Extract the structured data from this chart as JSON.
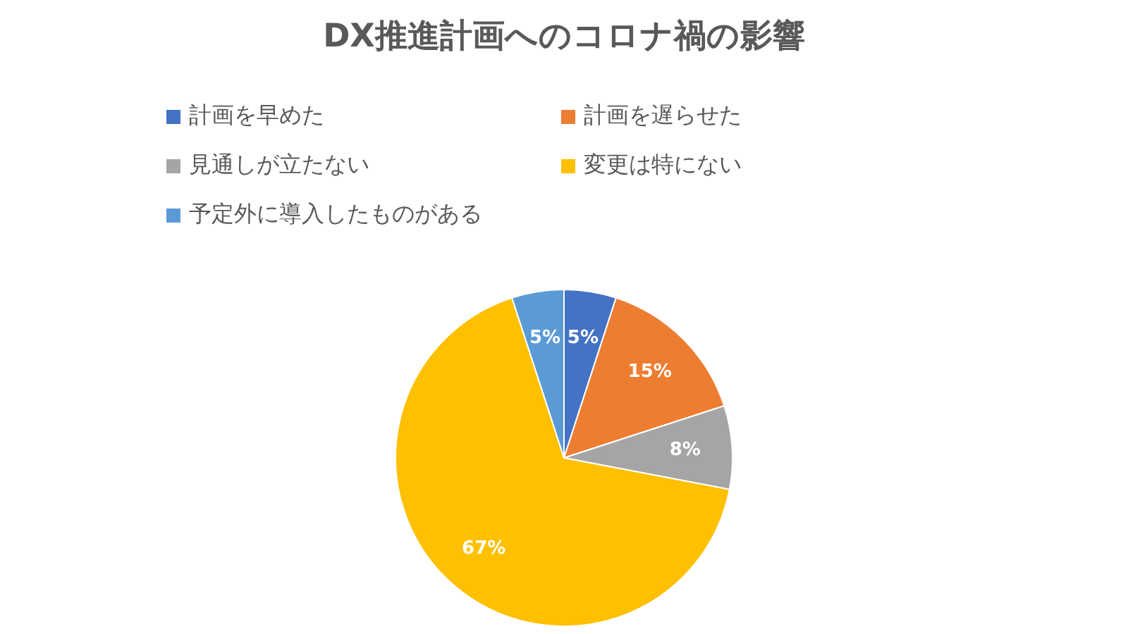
{
  "chart_data": {
    "type": "pie",
    "title": "DX推進計画へのコロナ禍の影響",
    "categories": [
      "計画を早めた",
      "計画を遅らせた",
      "見通しが立たない",
      "変更は特にない",
      "予定外に導入したものがある"
    ],
    "values": [
      5,
      15,
      8,
      67,
      5
    ],
    "colors": [
      "#4472c4",
      "#ed7d31",
      "#a5a5a5",
      "#ffc000",
      "#5b9bd5"
    ],
    "value_labels": [
      "5%",
      "15%",
      "8%",
      "67%",
      "5%"
    ],
    "legend": "top"
  }
}
